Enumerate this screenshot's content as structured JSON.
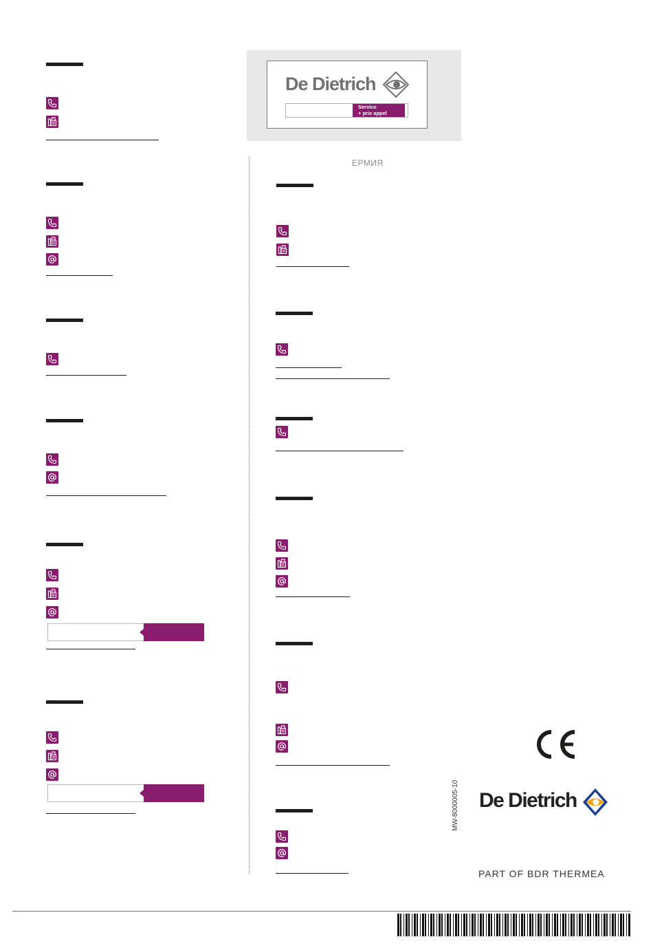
{
  "card": {
    "brand": "De Dietrich",
    "service_line1": "Service",
    "service_line2": "+ prix appel",
    "logo_icon": "de-dietrich-diamond-eye-icon"
  },
  "countries": {
    "germany": "ЕРМИЯ"
  },
  "footer": {
    "brand": "De Dietrich",
    "tagline": "PART OF BDR THERMEA",
    "doc_code": "MW-8000005-10",
    "certification": "CE",
    "logo_icon": "de-dietrich-diamond-eye-icon",
    "barcode_icon": "barcode-icon"
  },
  "icons": {
    "phone": "phone-icon",
    "fax": "fax-icon",
    "email": "at-sign-icon"
  },
  "colors": {
    "accent": "#8a1c6e",
    "bars": "#1d1d1b",
    "card_bg": "#e8e8e8",
    "logo_orange": "#f2a31a",
    "logo_blue": "#1c3f8f"
  }
}
